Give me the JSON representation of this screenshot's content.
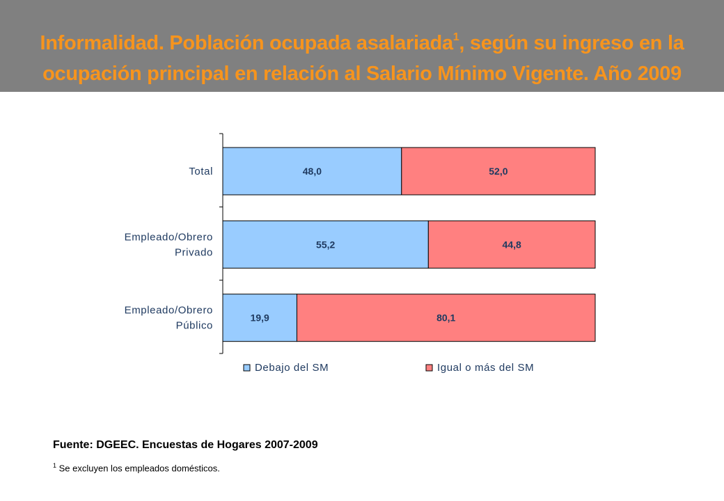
{
  "header": {
    "title_part1": "Informalidad. Población ocupada asalariada",
    "title_sup": "1",
    "title_part2": ", según su ingreso en la",
    "title_line2": "ocupación principal en relación al Salario Mínimo Vigente. Año 2009"
  },
  "chart_data": {
    "type": "bar",
    "orientation": "horizontal",
    "stacked": true,
    "percent_stacked": true,
    "categories": [
      [
        "Total"
      ],
      [
        "Empleado/Obrero",
        "Privado"
      ],
      [
        "Empleado/Obrero",
        "Público"
      ]
    ],
    "series": [
      {
        "name": "Debajo del SM",
        "values": [
          48.0,
          55.2,
          19.9
        ],
        "labels": [
          "48,0",
          "55,2",
          "19,9"
        ],
        "color": "#99ccff"
      },
      {
        "name": "Igual o más del SM",
        "values": [
          52.0,
          44.8,
          80.1
        ],
        "labels": [
          "52,0",
          "44,8",
          "80,1"
        ],
        "color": "#ff8080"
      }
    ],
    "xlim": [
      0,
      100
    ],
    "grid": false,
    "legend": "bottom",
    "bar_label_color": "#1f3a60"
  },
  "footer": {
    "source": "Fuente: DGEEC. Encuestas de Hogares 2007-2009",
    "footnote_sup": "1",
    "footnote_text": " Se excluyen los empleados domésticos."
  }
}
